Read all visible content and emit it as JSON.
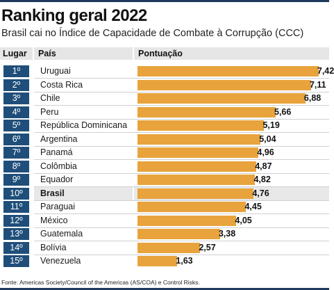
{
  "header": {
    "title": "Ranking geral 2022",
    "subtitle": "Brasil cai no Índice de Capacidade de Combate à Corrupção (CCC)"
  },
  "columns": {
    "rank": "Lugar",
    "country": "País",
    "score": "Pontuação"
  },
  "chart_data": {
    "type": "bar",
    "orientation": "horizontal",
    "title": "Ranking geral 2022",
    "subtitle": "Brasil cai no Índice de Capacidade de Combate à Corrupção (CCC)",
    "xlim": [
      0,
      7.85
    ],
    "highlight": "Brasil",
    "bar_color": "#e8a33d",
    "rank_color": "#1f4e7a",
    "rows": [
      {
        "rank": "1º",
        "country": "Uruguai",
        "value": 7.42,
        "label": "7,42"
      },
      {
        "rank": "2º",
        "country": "Costa Rica",
        "value": 7.11,
        "label": "7,11"
      },
      {
        "rank": "3º",
        "country": "Chile",
        "value": 6.88,
        "label": "6,88"
      },
      {
        "rank": "4º",
        "country": "Peru",
        "value": 5.66,
        "label": "5,66"
      },
      {
        "rank": "5º",
        "country": "República Dominicana",
        "value": 5.19,
        "label": "5,19"
      },
      {
        "rank": "6º",
        "country": "Argentina",
        "value": 5.04,
        "label": "5,04"
      },
      {
        "rank": "7º",
        "country": "Panamá",
        "value": 4.96,
        "label": "4,96"
      },
      {
        "rank": "8º",
        "country": "Colômbia",
        "value": 4.87,
        "label": "4,87"
      },
      {
        "rank": "9º",
        "country": "Equador",
        "value": 4.82,
        "label": "4,82"
      },
      {
        "rank": "10º",
        "country": "Brasil",
        "value": 4.76,
        "label": "4,76"
      },
      {
        "rank": "11º",
        "country": "Paraguai",
        "value": 4.45,
        "label": "4,45"
      },
      {
        "rank": "12º",
        "country": "México",
        "value": 4.05,
        "label": "4,05"
      },
      {
        "rank": "13º",
        "country": "Guatemala",
        "value": 3.38,
        "label": "3,38"
      },
      {
        "rank": "14º",
        "country": "Bolívia",
        "value": 2.57,
        "label": "2,57"
      },
      {
        "rank": "15º",
        "country": "Venezuela",
        "value": 1.63,
        "label": "1,63"
      }
    ]
  },
  "footer": {
    "source": "Fonte: Americas Society/Council of the Americas (AS/COA) e Control Risks."
  }
}
